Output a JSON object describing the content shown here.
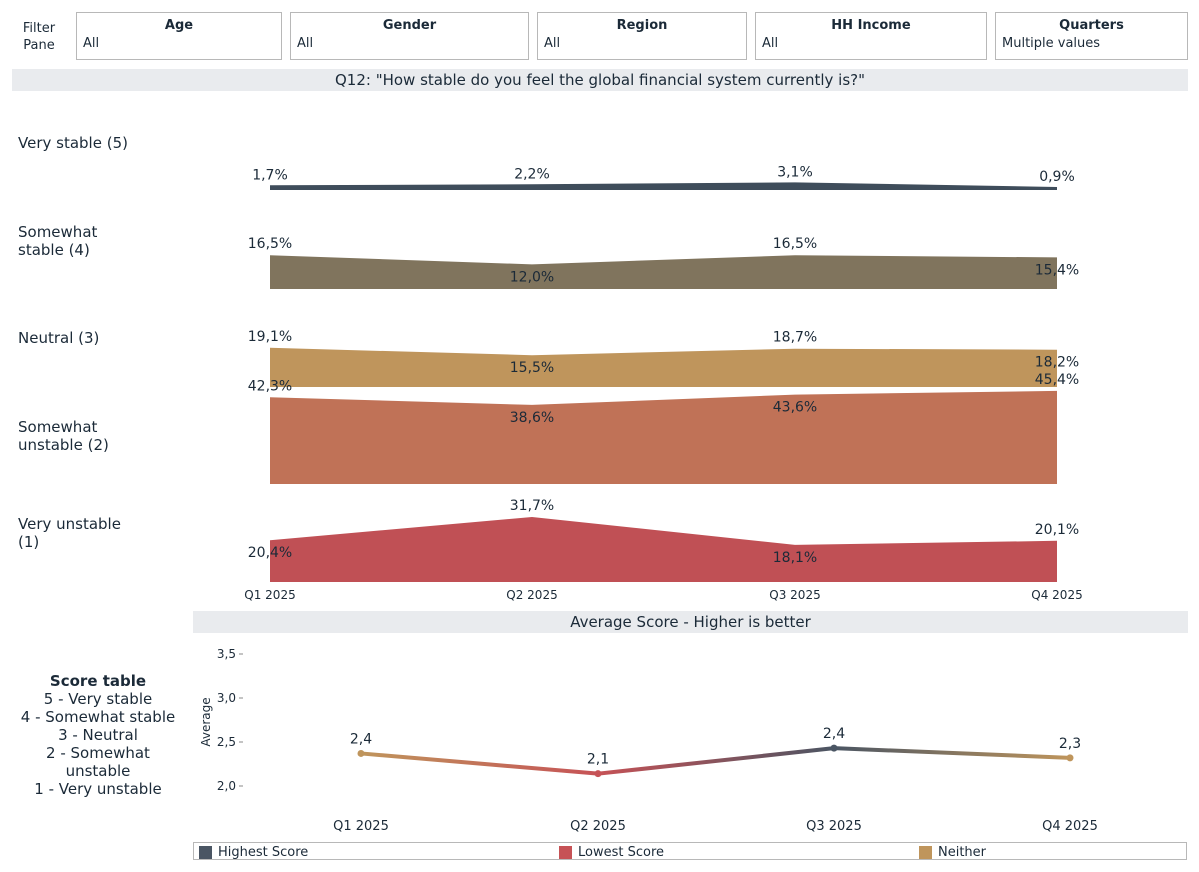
{
  "filter_pane": {
    "label": "Filter Pane"
  },
  "filters": [
    {
      "title": "Age",
      "value": "All"
    },
    {
      "title": "Gender",
      "value": "All"
    },
    {
      "title": "Region",
      "value": "All"
    },
    {
      "title": "HH Income",
      "value": "All"
    },
    {
      "title": "Quarters",
      "value": "Multiple values"
    }
  ],
  "question_title": "Q12: \"How stable do you feel the global financial system currently is?\"",
  "avg_title": "Average Score - Higher is better",
  "score_table": {
    "title": "Score table",
    "lines": [
      "5 - Very stable",
      "4 - Somewhat stable",
      "3 - Neutral",
      "2 - Somewhat unstable",
      "1 - Very unstable"
    ]
  },
  "legend": [
    {
      "label": "Highest Score",
      "color": "#4a5563"
    },
    {
      "label": "Lowest Score",
      "color": "#c65256"
    },
    {
      "label": "Neither",
      "color": "#bf955c"
    }
  ],
  "chart_data": [
    {
      "type": "area",
      "title": "Q12: \"How stable do you feel the global financial system currently is?\"",
      "categories": [
        "Q1 2025",
        "Q2 2025",
        "Q3 2025",
        "Q4 2025"
      ],
      "series": [
        {
          "name": "Very stable (5)",
          "color": "#3f4d5b",
          "values": [
            1.7,
            2.2,
            3.1,
            0.9
          ],
          "labels": [
            "1,7%",
            "2,2%",
            "3,1%",
            "0,9%"
          ]
        },
        {
          "name": "Somewhat stable (4)",
          "color": "#80745d",
          "values": [
            16.5,
            12.0,
            16.5,
            15.4
          ],
          "labels": [
            "16,5%",
            "12,0%",
            "16,5%",
            "15,4%"
          ]
        },
        {
          "name": "Neutral (3)",
          "color": "#bf955c",
          "values": [
            19.1,
            15.5,
            18.7,
            18.2
          ],
          "labels": [
            "19,1%",
            "15,5%",
            "18,7%",
            "18,2%"
          ]
        },
        {
          "name": "Somewhat unstable (2)",
          "color": "#c07257",
          "values": [
            42.3,
            38.6,
            43.6,
            45.4
          ],
          "labels": [
            "42,3%",
            "38,6%",
            "43,6%",
            "45,4%"
          ]
        },
        {
          "name": "Very unstable (1)",
          "color": "#c05055",
          "values": [
            20.4,
            31.7,
            18.1,
            20.1
          ],
          "labels": [
            "20,4%",
            "31,7%",
            "18,1%",
            "20,1%"
          ]
        }
      ]
    },
    {
      "type": "line",
      "title": "Average Score - Higher is better",
      "categories": [
        "Q1 2025",
        "Q2 2025",
        "Q3 2025",
        "Q4 2025"
      ],
      "ylabel": "Average",
      "ylim": [
        1.9,
        3.6
      ],
      "yticks": [
        2.0,
        2.5,
        3.0,
        3.5
      ],
      "ytick_labels": [
        "2,0",
        "2,5",
        "3,0",
        "3,5"
      ],
      "values": [
        2.37,
        2.14,
        2.43,
        2.32
      ],
      "labels": [
        "2,4",
        "2,1",
        "2,4",
        "2,3"
      ],
      "point_class": [
        "Neither",
        "Lowest Score",
        "Highest Score",
        "Neither"
      ]
    }
  ]
}
